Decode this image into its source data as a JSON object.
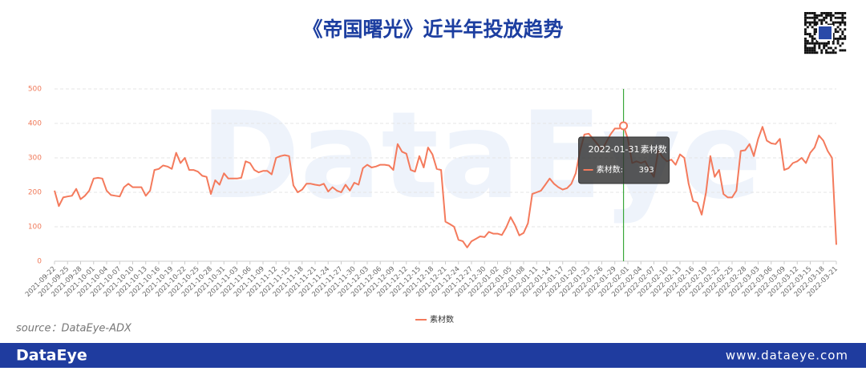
{
  "header": {
    "title": "《帝国曙光》近半年投放趋势"
  },
  "chart_data": {
    "type": "line",
    "watermark": "DataEye",
    "categories": [
      "2021-09-22",
      null,
      null,
      "2021-09-25",
      null,
      null,
      "2021-09-28",
      null,
      null,
      "2021-10-01",
      null,
      null,
      "2021-10-04",
      null,
      null,
      "2021-10-07",
      null,
      null,
      "2021-10-10",
      null,
      null,
      "2021-10-13",
      null,
      null,
      "2021-10-16",
      null,
      null,
      "2021-10-19",
      null,
      null,
      "2021-10-22",
      null,
      null,
      "2021-10-25",
      null,
      null,
      "2021-10-28",
      null,
      null,
      "2021-10-31",
      null,
      null,
      "2021-11-03",
      null,
      null,
      "2021-11-06",
      null,
      null,
      "2021-11-09",
      null,
      null,
      "2021-11-12",
      null,
      null,
      "2021-11-15",
      null,
      null,
      "2021-11-18",
      null,
      null,
      "2021-11-21",
      null,
      null,
      "2021-11-24",
      null,
      null,
      "2021-11-27",
      null,
      null,
      "2021-11-30",
      null,
      null,
      "2021-12-03",
      null,
      null,
      "2021-12-06",
      null,
      null,
      "2021-12-09",
      null,
      null,
      "2021-12-12",
      null,
      null,
      "2021-12-15",
      null,
      null,
      "2021-12-18",
      null,
      null,
      "2021-12-21",
      null,
      null,
      "2021-12-24",
      null,
      null,
      "2021-12-27",
      null,
      null,
      "2021-12-30",
      null,
      null,
      "2022-01-02",
      null,
      null,
      "2022-01-05",
      null,
      null,
      "2022-01-08",
      null,
      null,
      "2022-01-11",
      null,
      null,
      "2022-01-14",
      null,
      null,
      "2022-01-17",
      null,
      null,
      "2022-01-20",
      null,
      null,
      "2022-01-23",
      null,
      null,
      "2022-01-26",
      null,
      null,
      "2022-01-29",
      null,
      null,
      "2022-02-01",
      null,
      null,
      "2022-02-04",
      null,
      null,
      "2022-02-07",
      null,
      null,
      "2022-02-10",
      null,
      null,
      "2022-02-13",
      null,
      null,
      "2022-02-16",
      null,
      null,
      "2022-02-19",
      null,
      null,
      "2022-02-22",
      null,
      null,
      "2022-02-25",
      null,
      null,
      "2022-02-28",
      null,
      null,
      "2022-03-03",
      null,
      null,
      "2022-03-06",
      null,
      null,
      "2022-03-09",
      null,
      null,
      "2022-03-12",
      null,
      null,
      "2022-03-15",
      null,
      null,
      "2022-03-18",
      null,
      null,
      "2022-03-21"
    ],
    "series": [
      {
        "name": "素材数",
        "color": "#f47a5c",
        "values": [
          205,
          160,
          185,
          188,
          190,
          210,
          180,
          190,
          205,
          240,
          242,
          240,
          205,
          192,
          190,
          188,
          215,
          225,
          215,
          215,
          215,
          190,
          205,
          265,
          268,
          278,
          275,
          268,
          315,
          285,
          300,
          265,
          265,
          260,
          248,
          245,
          195,
          235,
          222,
          255,
          240,
          240,
          240,
          242,
          290,
          285,
          265,
          258,
          262,
          262,
          252,
          300,
          305,
          308,
          305,
          220,
          200,
          208,
          225,
          225,
          222,
          220,
          225,
          202,
          215,
          205,
          200,
          222,
          205,
          228,
          222,
          270,
          280,
          272,
          275,
          280,
          280,
          278,
          265,
          340,
          318,
          312,
          265,
          260,
          305,
          272,
          330,
          310,
          268,
          265,
          115,
          108,
          100,
          62,
          58,
          40,
          58,
          65,
          72,
          70,
          85,
          80,
          80,
          76,
          98,
          128,
          105,
          75,
          82,
          110,
          195,
          200,
          205,
          222,
          240,
          225,
          215,
          208,
          212,
          225,
          255,
          320,
          368,
          370,
          355,
          340,
          322,
          345,
          368,
          385,
          385,
          393,
          355,
          285,
          290,
          285,
          290,
          265,
          245,
          320,
          302,
          290,
          295,
          280,
          310,
          300,
          225,
          175,
          170,
          135,
          200,
          305,
          245,
          265,
          195,
          185,
          185,
          205,
          320,
          322,
          340,
          305,
          355,
          390,
          350,
          342,
          340,
          355,
          265,
          270,
          285,
          290,
          300,
          285,
          315,
          330,
          365,
          350,
          320,
          300,
          48
        ]
      }
    ],
    "ylim": [
      0,
      500
    ],
    "yticks": [
      0,
      100,
      200,
      300,
      400,
      500
    ],
    "grid": true,
    "legend": "bottom",
    "tooltip": {
      "x": "2022-01-31",
      "label_suffix": ":"
    }
  },
  "source": "source：DataEye-ADX",
  "footer": {
    "brand": "DataEye",
    "url": "www.dataeye.com"
  }
}
